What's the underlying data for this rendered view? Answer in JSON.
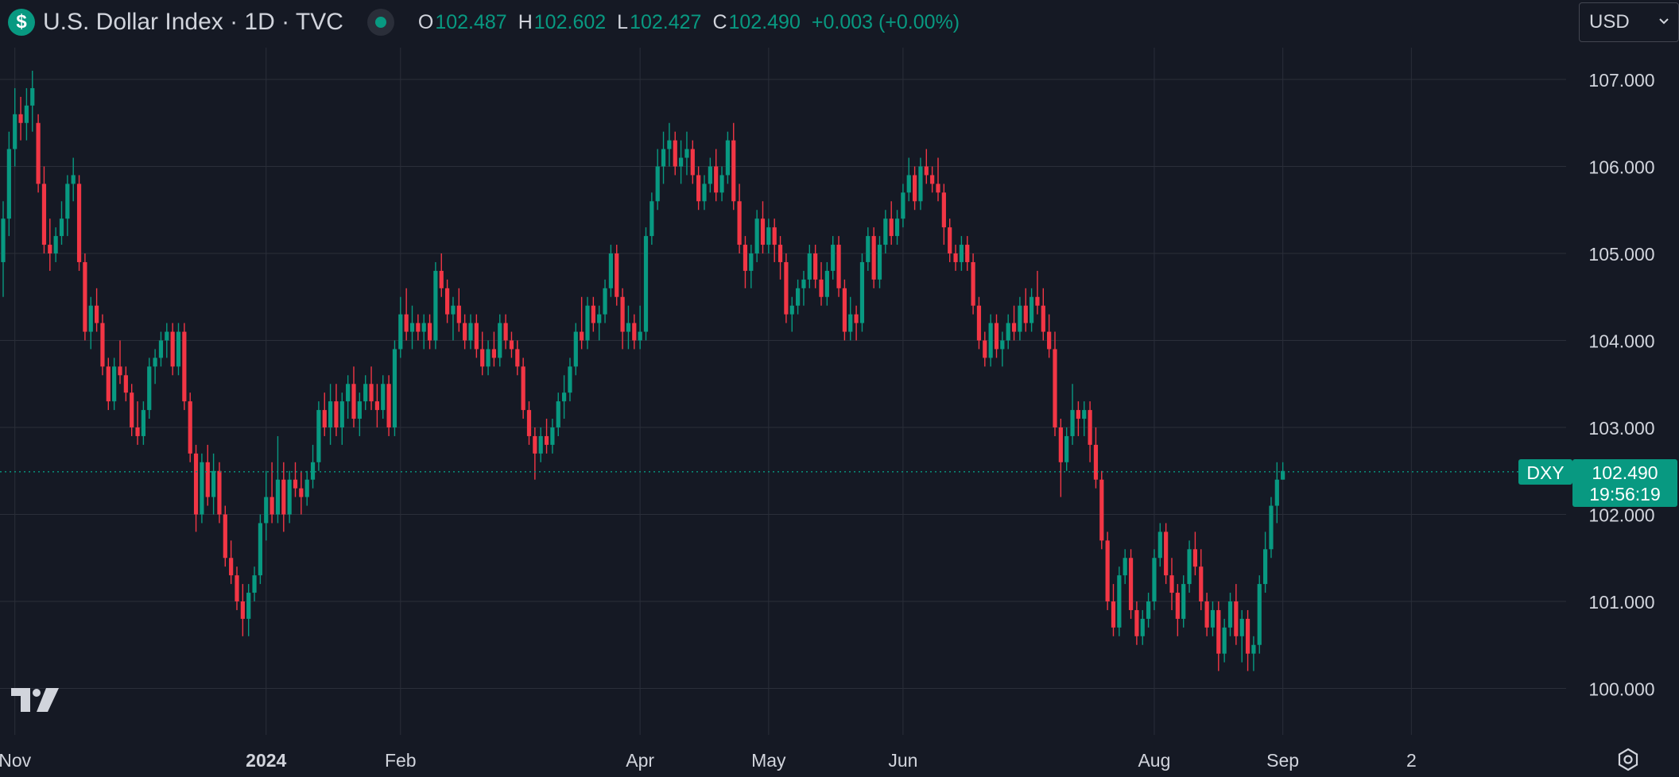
{
  "header": {
    "symbol_icon": "$",
    "title": "U.S. Dollar Index · 1D · TVC",
    "status_icon": "market-open-dot-icon",
    "open_label": "O",
    "open_value": "102.487",
    "high_label": "H",
    "high_value": "102.602",
    "low_label": "L",
    "low_value": "102.427",
    "close_label": "C",
    "close_value": "102.490",
    "change": "+0.003 (+0.00%)"
  },
  "currency": {
    "selected": "USD",
    "icon": "chevron-down-icon"
  },
  "price_tag": {
    "symbol": "DXY",
    "price": "102.490",
    "countdown": "19:56:19"
  },
  "logo_icon": "tradingview-logo-icon",
  "settings_icon": "settings-gear-icon",
  "colors": {
    "up": "#089981",
    "down": "#f23645",
    "background": "#151924",
    "grid": "#2a2e39",
    "text": "#d1d4dc"
  },
  "chart_data": {
    "type": "candlestick",
    "title": "",
    "xlabel": "",
    "ylabel": "",
    "ylim": [
      99.55,
      107.4
    ],
    "grid": true,
    "y_ticks": [
      "107.000",
      "106.000",
      "105.000",
      "104.000",
      "103.000",
      "102.000",
      "101.000",
      "100.000"
    ],
    "x_ticks": [
      {
        "label": "Nov",
        "index": 2,
        "bold": false
      },
      {
        "label": "2024",
        "index": 45,
        "bold": true
      },
      {
        "label": "Feb",
        "index": 68,
        "bold": false
      },
      {
        "label": "Apr",
        "index": 109,
        "bold": false
      },
      {
        "label": "May",
        "index": 131,
        "bold": false
      },
      {
        "label": "Jun",
        "index": 154,
        "bold": false
      },
      {
        "label": "Aug",
        "index": 197,
        "bold": false
      },
      {
        "label": "Sep",
        "index": 219,
        "bold": false
      },
      {
        "label": "2",
        "index": 241,
        "bold": false
      }
    ],
    "last_price": 102.49,
    "candles": [
      [
        104.9,
        105.6,
        104.5,
        105.4
      ],
      [
        105.4,
        106.4,
        105.2,
        106.2
      ],
      [
        106.2,
        106.9,
        106.0,
        106.6
      ],
      [
        106.6,
        106.8,
        106.3,
        106.5
      ],
      [
        106.5,
        106.9,
        106.3,
        106.7
      ],
      [
        106.7,
        107.1,
        106.4,
        106.9
      ],
      [
        106.5,
        106.6,
        105.7,
        105.8
      ],
      [
        105.8,
        106.0,
        105.0,
        105.1
      ],
      [
        105.1,
        105.4,
        104.8,
        105.0
      ],
      [
        105.0,
        105.3,
        104.9,
        105.2
      ],
      [
        105.2,
        105.6,
        105.1,
        105.4
      ],
      [
        105.4,
        105.9,
        105.2,
        105.8
      ],
      [
        105.8,
        106.1,
        105.6,
        105.9
      ],
      [
        105.8,
        105.9,
        104.8,
        104.9
      ],
      [
        104.9,
        105.0,
        104.0,
        104.1
      ],
      [
        104.1,
        104.5,
        103.9,
        104.4
      ],
      [
        104.4,
        104.6,
        104.1,
        104.2
      ],
      [
        104.2,
        104.3,
        103.6,
        103.7
      ],
      [
        103.7,
        103.8,
        103.2,
        103.3
      ],
      [
        103.3,
        103.8,
        103.2,
        103.7
      ],
      [
        103.7,
        104.0,
        103.5,
        103.6
      ],
      [
        103.6,
        103.7,
        103.3,
        103.4
      ],
      [
        103.4,
        103.5,
        102.9,
        103.0
      ],
      [
        103.0,
        103.3,
        102.8,
        102.9
      ],
      [
        102.9,
        103.3,
        102.8,
        103.2
      ],
      [
        103.2,
        103.8,
        103.1,
        103.7
      ],
      [
        103.7,
        103.9,
        103.5,
        103.8
      ],
      [
        103.8,
        104.1,
        103.7,
        104.0
      ],
      [
        104.0,
        104.2,
        103.8,
        104.1
      ],
      [
        104.1,
        104.2,
        103.6,
        103.7
      ],
      [
        103.7,
        104.2,
        103.6,
        104.1
      ],
      [
        104.1,
        104.2,
        103.2,
        103.3
      ],
      [
        103.3,
        103.4,
        102.6,
        102.7
      ],
      [
        102.7,
        102.8,
        101.8,
        102.0
      ],
      [
        102.0,
        102.7,
        101.9,
        102.6
      ],
      [
        102.6,
        102.8,
        102.1,
        102.2
      ],
      [
        102.2,
        102.7,
        102.0,
        102.5
      ],
      [
        102.5,
        102.6,
        101.9,
        102.0
      ],
      [
        102.0,
        102.1,
        101.4,
        101.5
      ],
      [
        101.5,
        101.7,
        101.2,
        101.3
      ],
      [
        101.3,
        101.4,
        100.9,
        101.0
      ],
      [
        101.0,
        101.2,
        100.6,
        100.8
      ],
      [
        100.8,
        101.2,
        100.6,
        101.1
      ],
      [
        101.1,
        101.4,
        101.0,
        101.3
      ],
      [
        101.3,
        102.0,
        101.2,
        101.9
      ],
      [
        101.9,
        102.5,
        101.7,
        102.2
      ],
      [
        102.2,
        102.6,
        101.9,
        102.0
      ],
      [
        102.0,
        102.9,
        101.9,
        102.4
      ],
      [
        102.4,
        102.6,
        101.8,
        102.0
      ],
      [
        102.0,
        102.5,
        101.9,
        102.4
      ],
      [
        102.4,
        102.6,
        102.2,
        102.3
      ],
      [
        102.3,
        102.5,
        102.0,
        102.2
      ],
      [
        102.2,
        102.5,
        102.1,
        102.4
      ],
      [
        102.4,
        102.8,
        102.3,
        102.6
      ],
      [
        102.6,
        103.3,
        102.5,
        103.2
      ],
      [
        103.2,
        103.4,
        102.9,
        103.0
      ],
      [
        103.0,
        103.5,
        102.8,
        103.3
      ],
      [
        103.3,
        103.5,
        102.9,
        103.0
      ],
      [
        103.0,
        103.4,
        102.8,
        103.3
      ],
      [
        103.3,
        103.6,
        103.1,
        103.5
      ],
      [
        103.5,
        103.7,
        103.0,
        103.1
      ],
      [
        103.1,
        103.4,
        102.9,
        103.3
      ],
      [
        103.3,
        103.6,
        103.2,
        103.5
      ],
      [
        103.5,
        103.7,
        103.2,
        103.3
      ],
      [
        103.3,
        103.5,
        103.0,
        103.2
      ],
      [
        103.2,
        103.6,
        103.1,
        103.5
      ],
      [
        103.5,
        103.6,
        102.9,
        103.0
      ],
      [
        103.0,
        104.0,
        102.9,
        103.9
      ],
      [
        103.9,
        104.5,
        103.8,
        104.3
      ],
      [
        104.3,
        104.6,
        104.0,
        104.1
      ],
      [
        104.1,
        104.4,
        103.9,
        104.2
      ],
      [
        104.2,
        104.3,
        104.0,
        104.1
      ],
      [
        104.1,
        104.3,
        103.9,
        104.2
      ],
      [
        104.2,
        104.3,
        103.9,
        104.0
      ],
      [
        104.0,
        104.9,
        103.9,
        104.8
      ],
      [
        104.8,
        105.0,
        104.5,
        104.6
      ],
      [
        104.6,
        104.7,
        104.2,
        104.3
      ],
      [
        104.3,
        104.5,
        104.0,
        104.4
      ],
      [
        104.4,
        104.6,
        104.1,
        104.2
      ],
      [
        104.2,
        104.3,
        103.9,
        104.0
      ],
      [
        104.0,
        104.3,
        103.9,
        104.2
      ],
      [
        104.2,
        104.3,
        103.8,
        103.9
      ],
      [
        103.9,
        104.1,
        103.6,
        103.7
      ],
      [
        103.7,
        104.0,
        103.6,
        103.9
      ],
      [
        103.9,
        104.1,
        103.7,
        103.8
      ],
      [
        103.8,
        104.3,
        103.7,
        104.2
      ],
      [
        104.2,
        104.3,
        103.9,
        104.0
      ],
      [
        104.0,
        104.1,
        103.8,
        103.9
      ],
      [
        103.9,
        104.0,
        103.6,
        103.7
      ],
      [
        103.7,
        103.8,
        103.1,
        103.2
      ],
      [
        103.2,
        103.3,
        102.8,
        102.9
      ],
      [
        102.9,
        103.0,
        102.4,
        102.7
      ],
      [
        102.7,
        103.0,
        102.6,
        102.9
      ],
      [
        102.9,
        103.1,
        102.7,
        102.8
      ],
      [
        102.8,
        103.1,
        102.7,
        103.0
      ],
      [
        103.0,
        103.4,
        102.9,
        103.3
      ],
      [
        103.3,
        103.6,
        103.1,
        103.4
      ],
      [
        103.4,
        103.8,
        103.3,
        103.7
      ],
      [
        103.7,
        104.2,
        103.6,
        104.1
      ],
      [
        104.1,
        104.5,
        103.9,
        104.0
      ],
      [
        104.0,
        104.5,
        103.9,
        104.4
      ],
      [
        104.4,
        104.5,
        104.1,
        104.2
      ],
      [
        104.2,
        104.4,
        104.0,
        104.3
      ],
      [
        104.3,
        104.7,
        104.2,
        104.6
      ],
      [
        104.6,
        105.1,
        104.5,
        105.0
      ],
      [
        105.0,
        105.1,
        104.4,
        104.5
      ],
      [
        104.5,
        104.6,
        103.9,
        104.1
      ],
      [
        104.1,
        104.4,
        103.9,
        104.2
      ],
      [
        104.2,
        104.3,
        103.9,
        104.0
      ],
      [
        104.0,
        104.4,
        103.9,
        104.1
      ],
      [
        104.1,
        105.3,
        104.0,
        105.2
      ],
      [
        105.2,
        105.7,
        105.1,
        105.6
      ],
      [
        105.6,
        106.2,
        105.5,
        106.0
      ],
      [
        106.0,
        106.4,
        105.8,
        106.2
      ],
      [
        106.2,
        106.5,
        106.0,
        106.3
      ],
      [
        106.3,
        106.4,
        105.9,
        106.0
      ],
      [
        106.0,
        106.3,
        105.8,
        106.1
      ],
      [
        106.1,
        106.4,
        105.9,
        106.2
      ],
      [
        106.2,
        106.3,
        105.8,
        105.9
      ],
      [
        105.9,
        106.0,
        105.5,
        105.6
      ],
      [
        105.6,
        105.9,
        105.5,
        105.8
      ],
      [
        105.8,
        106.1,
        105.7,
        106.0
      ],
      [
        106.0,
        106.2,
        105.6,
        105.7
      ],
      [
        105.7,
        106.0,
        105.6,
        105.9
      ],
      [
        105.9,
        106.4,
        105.8,
        106.3
      ],
      [
        106.3,
        106.5,
        105.5,
        105.6
      ],
      [
        105.6,
        105.8,
        105.0,
        105.1
      ],
      [
        105.1,
        105.2,
        104.6,
        104.8
      ],
      [
        104.8,
        105.1,
        104.6,
        105.0
      ],
      [
        105.0,
        105.5,
        104.9,
        105.4
      ],
      [
        105.4,
        105.6,
        105.0,
        105.1
      ],
      [
        105.1,
        105.4,
        105.0,
        105.3
      ],
      [
        105.3,
        105.4,
        104.9,
        105.1
      ],
      [
        105.1,
        105.2,
        104.7,
        104.9
      ],
      [
        104.9,
        105.0,
        104.2,
        104.3
      ],
      [
        104.3,
        104.5,
        104.1,
        104.4
      ],
      [
        104.4,
        104.7,
        104.3,
        104.6
      ],
      [
        104.6,
        104.8,
        104.4,
        104.7
      ],
      [
        104.7,
        105.1,
        104.6,
        105.0
      ],
      [
        105.0,
        105.1,
        104.6,
        104.7
      ],
      [
        104.7,
        104.9,
        104.4,
        104.5
      ],
      [
        104.5,
        104.9,
        104.4,
        104.8
      ],
      [
        104.8,
        105.2,
        104.7,
        105.1
      ],
      [
        105.1,
        105.2,
        104.5,
        104.6
      ],
      [
        104.6,
        104.7,
        104.0,
        104.1
      ],
      [
        104.1,
        104.5,
        104.0,
        104.3
      ],
      [
        104.3,
        104.4,
        104.0,
        104.2
      ],
      [
        104.2,
        105.0,
        104.1,
        104.9
      ],
      [
        104.9,
        105.3,
        104.8,
        105.2
      ],
      [
        105.2,
        105.3,
        104.6,
        104.7
      ],
      [
        104.7,
        105.2,
        104.6,
        105.1
      ],
      [
        105.1,
        105.5,
        105.0,
        105.4
      ],
      [
        105.4,
        105.6,
        105.1,
        105.2
      ],
      [
        105.2,
        105.5,
        105.1,
        105.4
      ],
      [
        105.4,
        105.8,
        105.3,
        105.7
      ],
      [
        105.7,
        106.1,
        105.6,
        105.9
      ],
      [
        105.9,
        106.0,
        105.5,
        105.6
      ],
      [
        105.6,
        106.1,
        105.5,
        106.0
      ],
      [
        106.0,
        106.2,
        105.8,
        105.9
      ],
      [
        105.9,
        106.0,
        105.7,
        105.8
      ],
      [
        105.8,
        106.1,
        105.6,
        105.7
      ],
      [
        105.7,
        105.8,
        105.1,
        105.3
      ],
      [
        105.3,
        105.4,
        104.9,
        105.0
      ],
      [
        105.0,
        105.1,
        104.8,
        104.9
      ],
      [
        104.9,
        105.2,
        104.8,
        105.1
      ],
      [
        105.1,
        105.2,
        104.8,
        104.9
      ],
      [
        104.9,
        105.0,
        104.3,
        104.4
      ],
      [
        104.4,
        104.5,
        103.9,
        104.0
      ],
      [
        104.0,
        104.1,
        103.7,
        103.8
      ],
      [
        103.8,
        104.3,
        103.7,
        104.2
      ],
      [
        104.2,
        104.3,
        103.8,
        103.9
      ],
      [
        103.9,
        104.1,
        103.7,
        104.0
      ],
      [
        104.0,
        104.3,
        103.9,
        104.2
      ],
      [
        104.2,
        104.4,
        104.0,
        104.1
      ],
      [
        104.1,
        104.5,
        104.0,
        104.4
      ],
      [
        104.4,
        104.6,
        104.1,
        104.2
      ],
      [
        104.2,
        104.6,
        104.1,
        104.5
      ],
      [
        104.5,
        104.8,
        104.3,
        104.4
      ],
      [
        104.4,
        104.6,
        104.0,
        104.1
      ],
      [
        104.1,
        104.3,
        103.8,
        103.9
      ],
      [
        103.9,
        104.1,
        102.9,
        103.0
      ],
      [
        103.0,
        103.1,
        102.2,
        102.6
      ],
      [
        102.6,
        103.0,
        102.5,
        102.9
      ],
      [
        102.9,
        103.5,
        102.8,
        103.2
      ],
      [
        103.2,
        103.3,
        102.9,
        103.1
      ],
      [
        103.1,
        103.3,
        102.9,
        103.2
      ],
      [
        103.2,
        103.3,
        102.6,
        102.8
      ],
      [
        102.8,
        103.0,
        102.3,
        102.4
      ],
      [
        102.4,
        102.5,
        101.6,
        101.7
      ],
      [
        101.7,
        101.8,
        100.9,
        101.0
      ],
      [
        101.0,
        101.2,
        100.6,
        100.7
      ],
      [
        100.7,
        101.4,
        100.6,
        101.3
      ],
      [
        101.3,
        101.6,
        101.2,
        101.5
      ],
      [
        101.5,
        101.6,
        100.8,
        100.9
      ],
      [
        100.9,
        101.0,
        100.5,
        100.6
      ],
      [
        100.6,
        100.9,
        100.5,
        100.8
      ],
      [
        100.8,
        101.1,
        100.7,
        101.0
      ],
      [
        101.0,
        101.6,
        100.9,
        101.5
      ],
      [
        101.5,
        101.9,
        101.4,
        101.8
      ],
      [
        101.8,
        101.9,
        101.2,
        101.3
      ],
      [
        101.3,
        101.5,
        100.9,
        101.1
      ],
      [
        101.1,
        101.2,
        100.6,
        100.8
      ],
      [
        100.8,
        101.3,
        100.7,
        101.2
      ],
      [
        101.2,
        101.7,
        101.1,
        101.6
      ],
      [
        101.6,
        101.8,
        101.3,
        101.4
      ],
      [
        101.4,
        101.6,
        100.9,
        101.0
      ],
      [
        101.0,
        101.1,
        100.6,
        100.7
      ],
      [
        100.7,
        101.0,
        100.6,
        100.9
      ],
      [
        100.9,
        101.0,
        100.2,
        100.4
      ],
      [
        100.4,
        100.8,
        100.3,
        100.7
      ],
      [
        100.7,
        101.1,
        100.6,
        101.0
      ],
      [
        101.0,
        101.2,
        100.5,
        100.6
      ],
      [
        100.6,
        100.9,
        100.3,
        100.8
      ],
      [
        100.8,
        100.9,
        100.2,
        100.4
      ],
      [
        100.4,
        100.6,
        100.2,
        100.5
      ],
      [
        100.5,
        101.3,
        100.4,
        101.2
      ],
      [
        101.2,
        101.8,
        101.1,
        101.6
      ],
      [
        101.6,
        102.2,
        101.5,
        102.1
      ],
      [
        102.1,
        102.6,
        101.9,
        102.4
      ],
      [
        102.4,
        102.6,
        102.4,
        102.5
      ]
    ]
  }
}
